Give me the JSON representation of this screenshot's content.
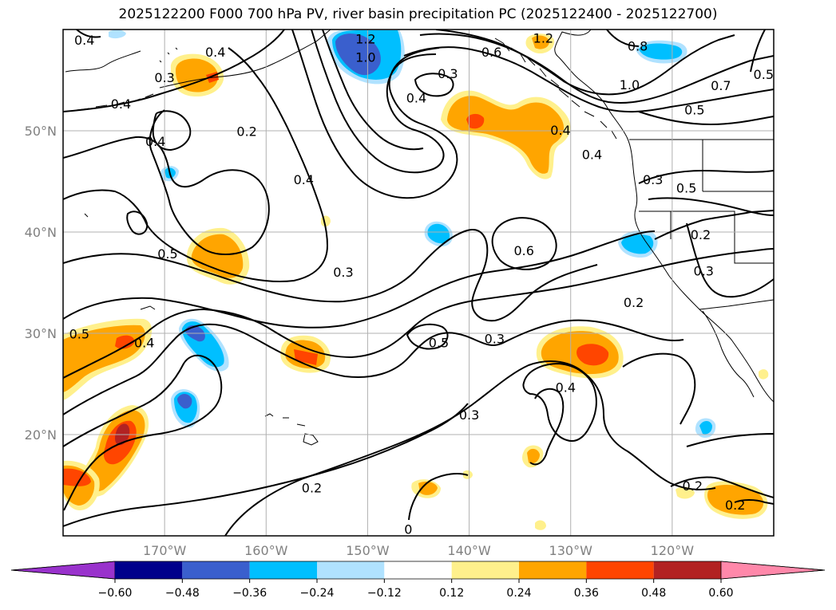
{
  "title": "2025122200 F000 700 hPa PV, river basin precipitation PC (2025122400 - 2025122700)",
  "map": {
    "lon_range": [
      -180,
      -110
    ],
    "lat_range": [
      10,
      60
    ],
    "lat_ticks": [
      {
        "value": 50,
        "label": "50°N"
      },
      {
        "value": 40,
        "label": "40°N"
      },
      {
        "value": 30,
        "label": "30°N"
      },
      {
        "value": 20,
        "label": "20°N"
      }
    ],
    "lon_ticks": [
      {
        "value": -170,
        "label": "170°W"
      },
      {
        "value": -160,
        "label": "160°W"
      },
      {
        "value": -150,
        "label": "150°W"
      },
      {
        "value": -140,
        "label": "140°W"
      },
      {
        "value": -130,
        "label": "130°W"
      },
      {
        "value": -120,
        "label": "120°W"
      }
    ],
    "grid": true
  },
  "colorbar": {
    "levels": [
      -0.6,
      -0.48,
      -0.36,
      -0.24,
      -0.12,
      0.12,
      0.24,
      0.36,
      0.48,
      0.6
    ],
    "labels": [
      "−0.60",
      "−0.48",
      "−0.36",
      "−0.24",
      "−0.12",
      "0.12",
      "0.24",
      "0.36",
      "0.48",
      "0.60"
    ],
    "colors": [
      "#9932cc",
      "#00008b",
      "#3a5fcd",
      "#00bfff",
      "#b0e2ff",
      "#ffffff",
      "#fff08c",
      "#ffa500",
      "#ff4500",
      "#b22222",
      "#ff88aa"
    ],
    "extend": "both"
  },
  "contour_labels": [
    {
      "text": "0.4",
      "lon": -177.9,
      "lat": 58.9
    },
    {
      "text": "1.2",
      "lon": -150.2,
      "lat": 59.0
    },
    {
      "text": "1.0",
      "lon": -150.2,
      "lat": 57.2
    },
    {
      "text": "1.2",
      "lon": -132.7,
      "lat": 59.1
    },
    {
      "text": "0.8",
      "lon": -123.4,
      "lat": 58.3
    },
    {
      "text": "0.3",
      "lon": -170.0,
      "lat": 55.2
    },
    {
      "text": "0.4",
      "lon": -165.0,
      "lat": 57.7
    },
    {
      "text": "0.6",
      "lon": -137.8,
      "lat": 57.7
    },
    {
      "text": "0.3",
      "lon": -142.1,
      "lat": 55.6
    },
    {
      "text": "0.4",
      "lon": -174.3,
      "lat": 52.6
    },
    {
      "text": "0.4",
      "lon": -145.2,
      "lat": 53.2
    },
    {
      "text": "1.0",
      "lon": -124.2,
      "lat": 54.5
    },
    {
      "text": "0.7",
      "lon": -115.2,
      "lat": 54.4
    },
    {
      "text": "0.5",
      "lon": -111.0,
      "lat": 55.5
    },
    {
      "text": "0.5",
      "lon": -117.8,
      "lat": 52.0
    },
    {
      "text": "0.4",
      "lon": -170.9,
      "lat": 48.9
    },
    {
      "text": "0.2",
      "lon": -161.9,
      "lat": 49.9
    },
    {
      "text": "0.4",
      "lon": -131.0,
      "lat": 50.0
    },
    {
      "text": "0.4",
      "lon": -127.9,
      "lat": 47.6
    },
    {
      "text": "0.4",
      "lon": -156.3,
      "lat": 45.1
    },
    {
      "text": "0.3",
      "lon": -121.9,
      "lat": 45.1
    },
    {
      "text": "0.5",
      "lon": -118.6,
      "lat": 44.3
    },
    {
      "text": "0.2",
      "lon": -117.2,
      "lat": 39.7
    },
    {
      "text": "0.5",
      "lon": -169.7,
      "lat": 37.8
    },
    {
      "text": "0.6",
      "lon": -134.6,
      "lat": 38.1
    },
    {
      "text": "0.3",
      "lon": -116.9,
      "lat": 36.1
    },
    {
      "text": "0.3",
      "lon": -152.4,
      "lat": 36.0
    },
    {
      "text": "0.2",
      "lon": -123.8,
      "lat": 33.0
    },
    {
      "text": "0.5",
      "lon": -178.4,
      "lat": 29.9
    },
    {
      "text": "0.4",
      "lon": -172.0,
      "lat": 29.0
    },
    {
      "text": "0.5",
      "lon": -143.0,
      "lat": 29.0
    },
    {
      "text": "0.3",
      "lon": -137.5,
      "lat": 29.4
    },
    {
      "text": "0.4",
      "lon": -130.5,
      "lat": 24.6
    },
    {
      "text": "0.3",
      "lon": -140.0,
      "lat": 21.9
    },
    {
      "text": "0.2",
      "lon": -155.5,
      "lat": 14.7
    },
    {
      "text": "0.2",
      "lon": -118.0,
      "lat": 14.9
    },
    {
      "text": "0.2",
      "lon": -113.8,
      "lat": 13.0
    },
    {
      "text": "0",
      "lon": -146.0,
      "lat": 10.6
    }
  ],
  "precip_regions": [
    {
      "sign": "positive",
      "lon": -168.0,
      "lat": 55.5,
      "peak": 0.48
    },
    {
      "sign": "positive",
      "lon": -139.2,
      "lat": 50.8,
      "peak": 0.48
    },
    {
      "sign": "positive",
      "lon": -134.0,
      "lat": 49.6,
      "peak": 0.36
    },
    {
      "sign": "positive",
      "lon": -164.3,
      "lat": 37.6,
      "peak": 0.36
    },
    {
      "sign": "positive",
      "lon": -174.8,
      "lat": 29.3,
      "peak": 0.48
    },
    {
      "sign": "positive",
      "lon": -155.0,
      "lat": 28.0,
      "peak": 0.48
    },
    {
      "sign": "positive",
      "lon": -129.1,
      "lat": 27.7,
      "peak": 0.48
    },
    {
      "sign": "positive",
      "lon": -175.0,
      "lat": 19.8,
      "peak": 0.6
    },
    {
      "sign": "positive",
      "lon": -178.5,
      "lat": 14.9,
      "peak": 0.48
    },
    {
      "sign": "positive",
      "lon": -112.9,
      "lat": 13.6,
      "peak": 0.36
    },
    {
      "sign": "positive",
      "lon": -133.0,
      "lat": 58.5,
      "peak": 0.36
    },
    {
      "sign": "negative",
      "lon": -149.6,
      "lat": 57.6,
      "peak": -0.48
    },
    {
      "sign": "negative",
      "lon": -123.3,
      "lat": 56.9,
      "peak": -0.24
    },
    {
      "sign": "negative",
      "lon": -167.5,
      "lat": 28.8,
      "peak": -0.48
    },
    {
      "sign": "negative",
      "lon": -168.1,
      "lat": 22.8,
      "peak": -0.48
    },
    {
      "sign": "negative",
      "lon": -142.9,
      "lat": 40.0,
      "peak": -0.36
    },
    {
      "sign": "negative",
      "lon": -121.7,
      "lat": 38.8,
      "peak": -0.36
    },
    {
      "sign": "negative",
      "lon": -168.9,
      "lat": 45.7,
      "peak": -0.24
    },
    {
      "sign": "negative",
      "lon": -116.2,
      "lat": 20.5,
      "peak": -0.24
    }
  ]
}
